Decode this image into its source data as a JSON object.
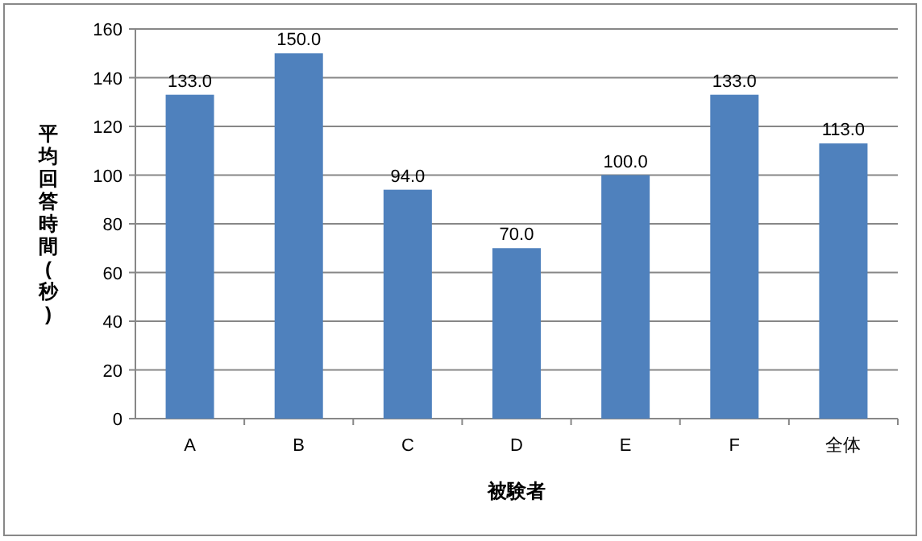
{
  "chart_data": {
    "type": "bar",
    "xlabel": "被験者",
    "ylabel": "平均回答時間(秒)",
    "categories": [
      "A",
      "B",
      "C",
      "D",
      "E",
      "F",
      "全体"
    ],
    "values": [
      133,
      150,
      94,
      70,
      100,
      133,
      113
    ],
    "value_labels": [
      "133.0",
      "150.0",
      "94.0",
      "70.0",
      "100.0",
      "133.0",
      "113.0"
    ],
    "color": "#4f81bd",
    "ylim": [
      0,
      160
    ],
    "yticks": [
      0,
      20,
      40,
      60,
      80,
      100,
      120,
      140,
      160
    ],
    "grid": "y"
  }
}
